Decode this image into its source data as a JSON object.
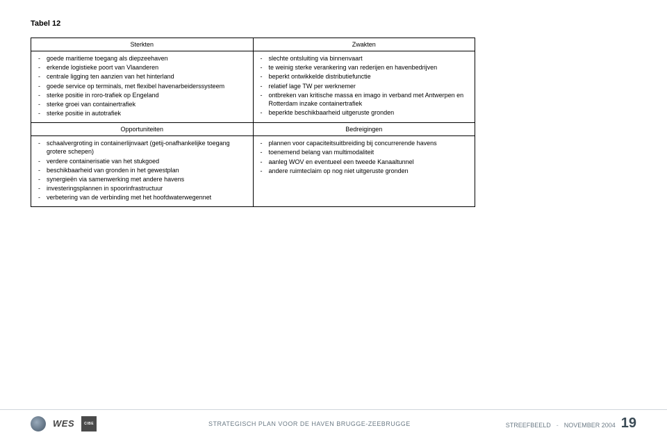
{
  "table_label": "Tabel 12",
  "headers": {
    "strengths": "Sterkten",
    "weaknesses": "Zwakten",
    "opportunities": "Opportuniteiten",
    "threats": "Bedreigingen"
  },
  "strengths": [
    "goede maritieme toegang als diepzeehaven",
    "erkende logistieke poort van Vlaanderen",
    "centrale ligging ten aanzien van het hinterland",
    "goede service op terminals, met flexibel havenarbeiderssysteem",
    "sterke positie in roro-trafiek op Engeland",
    "sterke groei van containertrafiek",
    "sterke positie in autotrafiek"
  ],
  "weaknesses": [
    "slechte ontsluiting via binnenvaart",
    "te weinig sterke verankering van rederijen en havenbedrijven",
    "beperkt ontwikkelde distributiefunctie",
    "relatief lage TW per werknemer",
    "ontbreken van kritische massa en imago in verband met Antwerpen en Rotterdam inzake containertrafiek",
    "beperkte beschikbaarheid uitgeruste gronden"
  ],
  "opportunities": [
    "schaalvergroting in containerlijnvaart (getij-onafhankelijke toegang grotere schepen)",
    "verdere containerisatie van het stukgoed",
    "beschikbaarheid van gronden in het gewestplan",
    "synergieën via samenwerking met andere havens",
    "investeringsplannen in spoorinfrastructuur",
    "verbetering van de verbinding met het hoofdwaterwegennet"
  ],
  "threats": [
    "plannen voor capaciteitsuitbreiding bij concurrerende havens",
    "toenemend belang van multimodaliteit",
    "aanleg WOV en eventueel een tweede Kanaaltunnel",
    "andere ruimteclaim op nog niet uitgeruste gronden"
  ],
  "footer": {
    "wes": "WES",
    "cibe": "CIBE",
    "doc_title": "STRATEGISCH PLAN VOOR DE HAVEN BRUGGE-ZEEBRUGGE",
    "section": "STREEFBEELD",
    "date": "NOVEMBER 2004",
    "page": "19"
  }
}
